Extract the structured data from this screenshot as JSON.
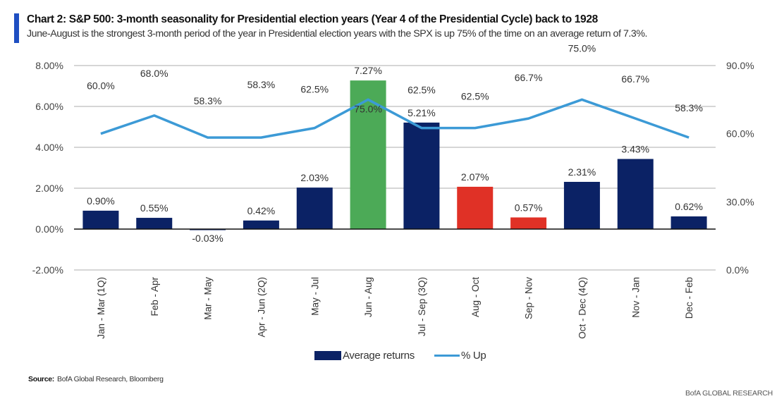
{
  "header": {
    "title": "Chart 2: S&P 500: 3-month seasonality for Presidential election years (Year 4 of the Presidential Cycle) back to 1928",
    "subtitle": "June-August is the strongest 3-month period of the year in Presidential election years with the SPX is up 75% of the time on an average return of 7.3%."
  },
  "footer": {
    "source_label": "Source:",
    "source_text": "BofA Global Research, Bloomberg",
    "brand": "BofA GLOBAL RESEARCH"
  },
  "colors": {
    "accent": "#1f4fc2",
    "bar_default": "#0b2265",
    "bar_highlight": "#4caa57",
    "bar_negative_highlight": "#e03126",
    "line": "#3c9ad6",
    "grid": "#c8c8c8",
    "zero_line": "#111111"
  },
  "chart_data": {
    "type": "bar",
    "title": "Chart 2: S&P 500: 3-month seasonality for Presidential election years (Year 4 of the Presidential Cycle) back to 1928",
    "categories": [
      "Jan - Mar (1Q)",
      "Feb - Apr",
      "Mar - May",
      "Apr - Jun (2Q)",
      "May - Jul",
      "Jun - Aug",
      "Jul - Sep (3Q)",
      "Aug - Oct",
      "Sep - Nov",
      "Oct - Dec (4Q)",
      "Nov - Jan",
      "Dec - Feb"
    ],
    "series": [
      {
        "name": "Average returns",
        "type": "bar",
        "axis": "left",
        "values": [
          0.9,
          0.55,
          -0.03,
          0.42,
          2.03,
          7.27,
          5.21,
          2.07,
          0.57,
          2.31,
          3.43,
          0.62
        ],
        "labels": [
          "0.90%",
          "0.55%",
          "-0.03%",
          "0.42%",
          "2.03%",
          "7.27%",
          "5.21%",
          "2.07%",
          "0.57%",
          "2.31%",
          "3.43%",
          "0.62%"
        ],
        "bar_colors": [
          "default",
          "default",
          "default",
          "default",
          "default",
          "highlight",
          "default",
          "negative_highlight",
          "negative_highlight",
          "default",
          "default",
          "default"
        ]
      },
      {
        "name": "% Up",
        "type": "line",
        "axis": "right",
        "values": [
          60.0,
          68.0,
          58.3,
          58.3,
          62.5,
          75.0,
          62.5,
          62.5,
          66.7,
          75.0,
          66.7,
          58.3
        ],
        "labels": [
          "60.0%",
          "68.0%",
          "58.3%",
          "58.3%",
          "62.5%",
          "75.0%",
          "62.5%",
          "62.5%",
          "66.7%",
          "75.0%",
          "66.7%",
          "58.3%"
        ]
      }
    ],
    "y_left": {
      "min": -2,
      "max": 8,
      "ticks": [
        -2,
        0,
        2,
        4,
        6,
        8
      ],
      "tick_labels": [
        "-2.00%",
        "0.00%",
        "2.00%",
        "4.00%",
        "6.00%",
        "8.00%"
      ]
    },
    "y_right": {
      "min": 0,
      "max": 90,
      "ticks": [
        0,
        30,
        60,
        90
      ],
      "tick_labels": [
        "0.0%",
        "30.0%",
        "60.0%",
        "90.0%"
      ]
    },
    "xlabel": "",
    "ylabel": "",
    "grid": true,
    "legend": {
      "position": "bottom",
      "entries": [
        "Average returns",
        "% Up"
      ]
    }
  }
}
